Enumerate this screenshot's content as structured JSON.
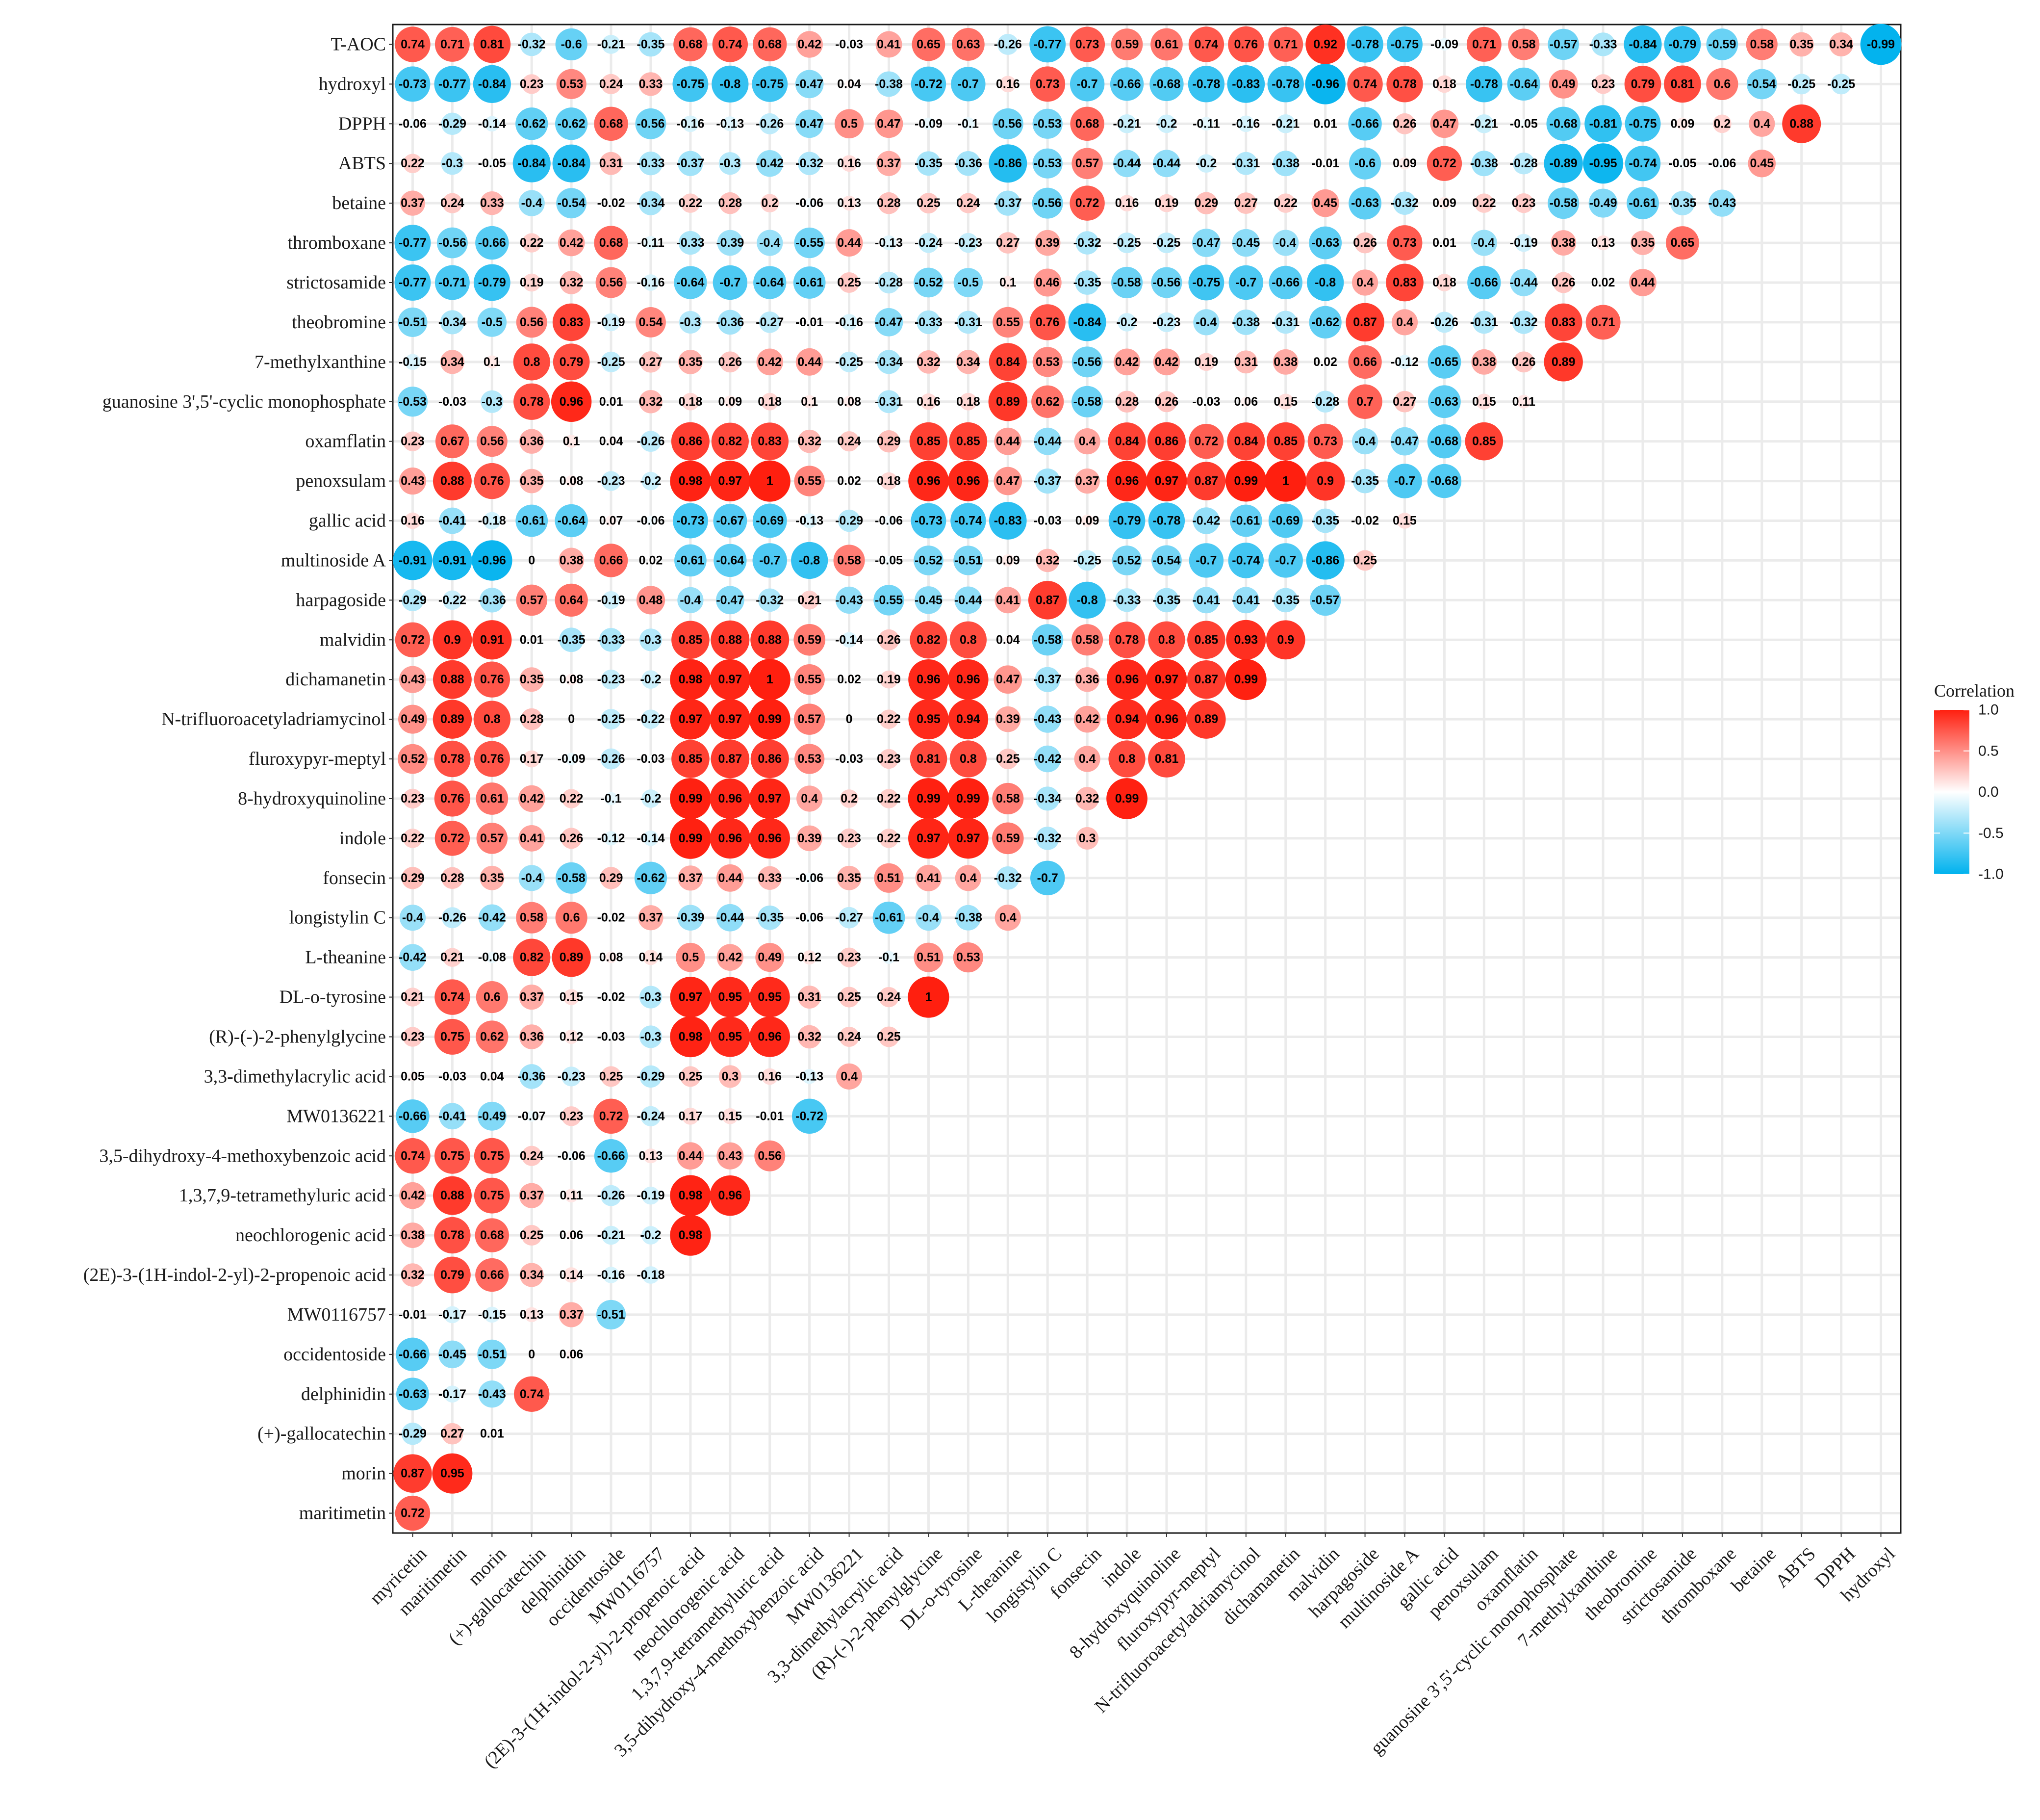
{
  "chart_data": {
    "type": "heatmap",
    "subtype": "correlation-circle-lower-triangle",
    "title": "",
    "legend": {
      "title": "Correlation",
      "ticks": [
        "1.0",
        "0.5",
        "0.0",
        "-0.5",
        "-1.0"
      ],
      "tick_values": [
        1.0,
        0.5,
        0.0,
        -0.5,
        -1.0
      ],
      "placement": "right",
      "colors": {
        "negative": "#00b2ee",
        "zero": "#ffffff",
        "positive": "#ff1f0f"
      }
    },
    "range": [
      -1,
      1
    ],
    "grid": true,
    "x_labels": [
      "myricetin",
      "maritimetin",
      "morin",
      "(+)-gallocatechin",
      "delphinidin",
      "occidentoside",
      "MW0116757",
      "(2E)-3-(1H-indol-2-yl)-2-propenoic acid",
      "neochlorogenic acid",
      "1,3,7,9-tetramethyluric acid",
      "3,5-dihydroxy-4-methoxybenzoic acid",
      "MW0136221",
      "3,3-dimethylacrylic acid",
      "(R)-(-)-2-phenylglycine",
      "DL-o-tyrosine",
      "L-theanine",
      "longistylin C",
      "fonsecin",
      "indole",
      "8-hydroxyquinoline",
      "fluroxypyr-meptyl",
      "N-trifluoroacetyladriamycinol",
      "dichamanetin",
      "malvidin",
      "harpagoside",
      "multinoside A",
      "gallic acid",
      "penoxsulam",
      "oxamflatin",
      "guanosine 3',5'-cyclic monophosphate",
      "7-methylxanthine",
      "theobromine",
      "strictosamide",
      "thromboxane",
      "betaine",
      "ABTS",
      "DPPH",
      "hydroxyl"
    ],
    "y_labels": [
      "T-AOC",
      "hydroxyl",
      "DPPH",
      "ABTS",
      "betaine",
      "thromboxane",
      "strictosamide",
      "theobromine",
      "7-methylxanthine",
      "guanosine 3',5'-cyclic monophosphate",
      "oxamflatin",
      "penoxsulam",
      "gallic acid",
      "multinoside A",
      "harpagoside",
      "malvidin",
      "dichamanetin",
      "N-trifluoroacetyladriamycinol",
      "fluroxypyr-meptyl",
      "8-hydroxyquinoline",
      "indole",
      "fonsecin",
      "longistylin C",
      "L-theanine",
      "DL-o-tyrosine",
      "(R)-(-)-2-phenylglycine",
      "3,3-dimethylacrylic acid",
      "MW0136221",
      "3,5-dihydroxy-4-methoxybenzoic acid",
      "1,3,7,9-tetramethyluric acid",
      "neochlorogenic acid",
      "(2E)-3-(1H-indol-2-yl)-2-propenoic acid",
      "MW0116757",
      "occidentoside",
      "delphinidin",
      "(+)-gallocatechin",
      "morin",
      "maritimetin"
    ],
    "values": [
      [
        "0.74",
        "0.71",
        "0.81",
        "-0.32",
        "-0.6",
        "-0.21",
        "-0.35",
        "0.68",
        "0.74",
        "0.68",
        "0.42",
        "-0.03",
        "0.41",
        "0.65",
        "0.63",
        "-0.26",
        "-0.77",
        "0.73",
        "0.59",
        "0.61",
        "0.74",
        "0.76",
        "0.71",
        "0.92",
        "-0.78",
        "-0.75",
        "-0.09",
        "0.71",
        "0.58",
        "-0.57",
        "-0.33",
        "-0.84",
        "-0.79",
        "-0.59",
        "0.58",
        "0.35",
        "0.34",
        "-0.99"
      ],
      [
        "-0.73",
        "-0.77",
        "-0.84",
        "0.23",
        "0.53",
        "0.24",
        "0.33",
        "-0.75",
        "-0.8",
        "-0.75",
        "-0.47",
        "0.04",
        "-0.38",
        "-0.72",
        "-0.7",
        "0.16",
        "0.73",
        "-0.7",
        "-0.66",
        "-0.68",
        "-0.78",
        "-0.83",
        "-0.78",
        "-0.96",
        "0.74",
        "0.78",
        "0.18",
        "-0.78",
        "-0.64",
        "0.49",
        "0.23",
        "0.79",
        "0.81",
        "0.6",
        "-0.54",
        "-0.25",
        "-0.25"
      ],
      [
        "-0.06",
        "-0.29",
        "-0.14",
        "-0.62",
        "-0.62",
        "0.68",
        "-0.56",
        "-0.16",
        "-0.13",
        "-0.26",
        "-0.47",
        "0.5",
        "0.47",
        "-0.09",
        "-0.1",
        "-0.56",
        "-0.53",
        "0.68",
        "-0.21",
        "-0.2",
        "-0.11",
        "-0.16",
        "-0.21",
        "0.01",
        "-0.66",
        "0.26",
        "0.47",
        "-0.21",
        "-0.05",
        "-0.68",
        "-0.81",
        "-0.75",
        "0.09",
        "0.2",
        "0.4",
        "0.88"
      ],
      [
        "0.22",
        "-0.3",
        "-0.05",
        "-0.84",
        "-0.84",
        "0.31",
        "-0.33",
        "-0.37",
        "-0.3",
        "-0.42",
        "-0.32",
        "0.16",
        "0.37",
        "-0.35",
        "-0.36",
        "-0.86",
        "-0.53",
        "0.57",
        "-0.44",
        "-0.44",
        "-0.2",
        "-0.31",
        "-0.38",
        "-0.01",
        "-0.6",
        "0.09",
        "0.72",
        "-0.38",
        "-0.28",
        "-0.89",
        "-0.95",
        "-0.74",
        "-0.05",
        "-0.06",
        "0.45"
      ],
      [
        "0.37",
        "0.24",
        "0.33",
        "-0.4",
        "-0.54",
        "-0.02",
        "-0.34",
        "0.22",
        "0.28",
        "0.2",
        "-0.06",
        "0.13",
        "0.28",
        "0.25",
        "0.24",
        "-0.37",
        "-0.56",
        "0.72",
        "0.16",
        "0.19",
        "0.29",
        "0.27",
        "0.22",
        "0.45",
        "-0.63",
        "-0.32",
        "0.09",
        "0.22",
        "0.23",
        "-0.58",
        "-0.49",
        "-0.61",
        "-0.35",
        "-0.43"
      ],
      [
        "-0.77",
        "-0.56",
        "-0.66",
        "0.22",
        "0.42",
        "0.68",
        "-0.11",
        "-0.33",
        "-0.39",
        "-0.4",
        "-0.55",
        "0.44",
        "-0.13",
        "-0.24",
        "-0.23",
        "0.27",
        "0.39",
        "-0.32",
        "-0.25",
        "-0.25",
        "-0.47",
        "-0.45",
        "-0.4",
        "-0.63",
        "0.26",
        "0.73",
        "0.01",
        "-0.4",
        "-0.19",
        "0.38",
        "0.13",
        "0.35",
        "0.65"
      ],
      [
        "-0.77",
        "-0.71",
        "-0.79",
        "0.19",
        "0.32",
        "0.56",
        "-0.16",
        "-0.64",
        "-0.7",
        "-0.64",
        "-0.61",
        "0.25",
        "-0.28",
        "-0.52",
        "-0.5",
        "0.1",
        "0.46",
        "-0.35",
        "-0.58",
        "-0.56",
        "-0.75",
        "-0.7",
        "-0.66",
        "-0.8",
        "0.4",
        "0.83",
        "0.18",
        "-0.66",
        "-0.44",
        "0.26",
        "0.02",
        "0.44"
      ],
      [
        "-0.51",
        "-0.34",
        "-0.5",
        "0.56",
        "0.83",
        "-0.19",
        "0.54",
        "-0.3",
        "-0.36",
        "-0.27",
        "-0.01",
        "-0.16",
        "-0.47",
        "-0.33",
        "-0.31",
        "0.55",
        "0.76",
        "-0.84",
        "-0.2",
        "-0.23",
        "-0.4",
        "-0.38",
        "-0.31",
        "-0.62",
        "0.87",
        "0.4",
        "-0.26",
        "-0.31",
        "-0.32",
        "0.83",
        "0.71"
      ],
      [
        "-0.15",
        "0.34",
        "0.1",
        "0.8",
        "0.79",
        "-0.25",
        "0.27",
        "0.35",
        "0.26",
        "0.42",
        "0.44",
        "-0.25",
        "-0.34",
        "0.32",
        "0.34",
        "0.84",
        "0.53",
        "-0.56",
        "0.42",
        "0.42",
        "0.19",
        "0.31",
        "0.38",
        "0.02",
        "0.66",
        "-0.12",
        "-0.65",
        "0.38",
        "0.26",
        "0.89"
      ],
      [
        "-0.53",
        "-0.03",
        "-0.3",
        "0.78",
        "0.96",
        "0.01",
        "0.32",
        "0.18",
        "0.09",
        "0.18",
        "0.1",
        "0.08",
        "-0.31",
        "0.16",
        "0.18",
        "0.89",
        "0.62",
        "-0.58",
        "0.28",
        "0.26",
        "-0.03",
        "0.06",
        "0.15",
        "-0.28",
        "0.7",
        "0.27",
        "-0.63",
        "0.15",
        "0.11"
      ],
      [
        "0.23",
        "0.67",
        "0.56",
        "0.36",
        "0.1",
        "0.04",
        "-0.26",
        "0.86",
        "0.82",
        "0.83",
        "0.32",
        "0.24",
        "0.29",
        "0.85",
        "0.85",
        "0.44",
        "-0.44",
        "0.4",
        "0.84",
        "0.86",
        "0.72",
        "0.84",
        "0.85",
        "0.73",
        "-0.4",
        "-0.47",
        "-0.68",
        "0.85"
      ],
      [
        "0.43",
        "0.88",
        "0.76",
        "0.35",
        "0.08",
        "-0.23",
        "-0.2",
        "0.98",
        "0.97",
        "1",
        "0.55",
        "0.02",
        "0.18",
        "0.96",
        "0.96",
        "0.47",
        "-0.37",
        "0.37",
        "0.96",
        "0.97",
        "0.87",
        "0.99",
        "1",
        "0.9",
        "-0.35",
        "-0.7",
        "-0.68"
      ],
      [
        "0.16",
        "-0.41",
        "-0.18",
        "-0.61",
        "-0.64",
        "0.07",
        "-0.06",
        "-0.73",
        "-0.67",
        "-0.69",
        "-0.13",
        "-0.29",
        "-0.06",
        "-0.73",
        "-0.74",
        "-0.83",
        "-0.03",
        "0.09",
        "-0.79",
        "-0.78",
        "-0.42",
        "-0.61",
        "-0.69",
        "-0.35",
        "-0.02",
        "0.15"
      ],
      [
        "-0.91",
        "-0.91",
        "-0.96",
        "0",
        "0.38",
        "0.66",
        "0.02",
        "-0.61",
        "-0.64",
        "-0.7",
        "-0.8",
        "0.58",
        "-0.05",
        "-0.52",
        "-0.51",
        "0.09",
        "0.32",
        "-0.25",
        "-0.52",
        "-0.54",
        "-0.7",
        "-0.74",
        "-0.7",
        "-0.86",
        "0.25"
      ],
      [
        "-0.29",
        "-0.22",
        "-0.36",
        "0.57",
        "0.64",
        "-0.19",
        "0.48",
        "-0.4",
        "-0.47",
        "-0.32",
        "0.21",
        "-0.43",
        "-0.55",
        "-0.45",
        "-0.44",
        "0.41",
        "0.87",
        "-0.8",
        "-0.33",
        "-0.35",
        "-0.41",
        "-0.41",
        "-0.35",
        "-0.57"
      ],
      [
        "0.72",
        "0.9",
        "0.91",
        "0.01",
        "-0.35",
        "-0.33",
        "-0.3",
        "0.85",
        "0.88",
        "0.88",
        "0.59",
        "-0.14",
        "0.26",
        "0.82",
        "0.8",
        "0.04",
        "-0.58",
        "0.58",
        "0.78",
        "0.8",
        "0.85",
        "0.93",
        "0.9"
      ],
      [
        "0.43",
        "0.88",
        "0.76",
        "0.35",
        "0.08",
        "-0.23",
        "-0.2",
        "0.98",
        "0.97",
        "1",
        "0.55",
        "0.02",
        "0.19",
        "0.96",
        "0.96",
        "0.47",
        "-0.37",
        "0.36",
        "0.96",
        "0.97",
        "0.87",
        "0.99"
      ],
      [
        "0.49",
        "0.89",
        "0.8",
        "0.28",
        "0",
        "-0.25",
        "-0.22",
        "0.97",
        "0.97",
        "0.99",
        "0.57",
        "0",
        "0.22",
        "0.95",
        "0.94",
        "0.39",
        "-0.43",
        "0.42",
        "0.94",
        "0.96",
        "0.89"
      ],
      [
        "0.52",
        "0.78",
        "0.76",
        "0.17",
        "-0.09",
        "-0.26",
        "-0.03",
        "0.85",
        "0.87",
        "0.86",
        "0.53",
        "-0.03",
        "0.23",
        "0.81",
        "0.8",
        "0.25",
        "-0.42",
        "0.4",
        "0.8",
        "0.81"
      ],
      [
        "0.23",
        "0.76",
        "0.61",
        "0.42",
        "0.22",
        "-0.1",
        "-0.2",
        "0.99",
        "0.96",
        "0.97",
        "0.4",
        "0.2",
        "0.22",
        "0.99",
        "0.99",
        "0.58",
        "-0.34",
        "0.32",
        "0.99"
      ],
      [
        "0.22",
        "0.72",
        "0.57",
        "0.41",
        "0.26",
        "-0.12",
        "-0.14",
        "0.99",
        "0.96",
        "0.96",
        "0.39",
        "0.23",
        "0.22",
        "0.97",
        "0.97",
        "0.59",
        "-0.32",
        "0.3"
      ],
      [
        "0.29",
        "0.28",
        "0.35",
        "-0.4",
        "-0.58",
        "0.29",
        "-0.62",
        "0.37",
        "0.44",
        "0.33",
        "-0.06",
        "0.35",
        "0.51",
        "0.41",
        "0.4",
        "-0.32",
        "-0.7"
      ],
      [
        "-0.4",
        "-0.26",
        "-0.42",
        "0.58",
        "0.6",
        "-0.02",
        "0.37",
        "-0.39",
        "-0.44",
        "-0.35",
        "-0.06",
        "-0.27",
        "-0.61",
        "-0.4",
        "-0.38",
        "0.4"
      ],
      [
        "-0.42",
        "0.21",
        "-0.08",
        "0.82",
        "0.89",
        "0.08",
        "0.14",
        "0.5",
        "0.42",
        "0.49",
        "0.12",
        "0.23",
        "-0.1",
        "0.51",
        "0.53"
      ],
      [
        "0.21",
        "0.74",
        "0.6",
        "0.37",
        "0.15",
        "-0.02",
        "-0.3",
        "0.97",
        "0.95",
        "0.95",
        "0.31",
        "0.25",
        "0.24",
        "1"
      ],
      [
        "0.23",
        "0.75",
        "0.62",
        "0.36",
        "0.12",
        "-0.03",
        "-0.3",
        "0.98",
        "0.95",
        "0.96",
        "0.32",
        "0.24",
        "0.25"
      ],
      [
        "0.05",
        "-0.03",
        "0.04",
        "-0.36",
        "-0.23",
        "0.25",
        "-0.29",
        "0.25",
        "0.3",
        "0.16",
        "-0.13",
        "0.4"
      ],
      [
        "-0.66",
        "-0.41",
        "-0.49",
        "-0.07",
        "0.23",
        "0.72",
        "-0.24",
        "0.17",
        "0.15",
        "-0.01",
        "-0.72"
      ],
      [
        "0.74",
        "0.75",
        "0.75",
        "0.24",
        "-0.06",
        "-0.66",
        "0.13",
        "0.44",
        "0.43",
        "0.56"
      ],
      [
        "0.42",
        "0.88",
        "0.75",
        "0.37",
        "0.11",
        "-0.26",
        "-0.19",
        "0.98",
        "0.96"
      ],
      [
        "0.38",
        "0.78",
        "0.68",
        "0.25",
        "0.06",
        "-0.21",
        "-0.2",
        "0.98"
      ],
      [
        "0.32",
        "0.79",
        "0.66",
        "0.34",
        "0.14",
        "-0.16",
        "-0.18"
      ],
      [
        "-0.01",
        "-0.17",
        "-0.15",
        "0.13",
        "0.37",
        "-0.51"
      ],
      [
        "-0.66",
        "-0.45",
        "-0.51",
        "0",
        "0.06"
      ],
      [
        "-0.63",
        "-0.17",
        "-0.43",
        "0.74"
      ],
      [
        "-0.29",
        "0.27",
        "0.01"
      ],
      [
        "0.87",
        "0.95"
      ],
      [
        "0.72"
      ]
    ]
  }
}
